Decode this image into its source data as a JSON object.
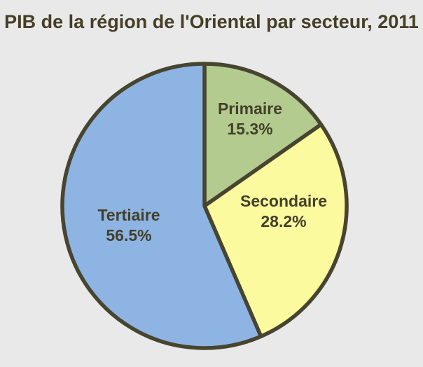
{
  "title": "PIB de la région de l'Oriental par secteur, 2011",
  "chart_data": {
    "type": "pie",
    "title": "PIB de la région de l'Oriental par secteur, 2011",
    "categories": [
      "Primaire",
      "Secondaire",
      "Tertiaire"
    ],
    "values": [
      15.3,
      28.2,
      56.5
    ],
    "unit": "%",
    "start_angle": "12 o'clock",
    "direction": "clockwise",
    "legend": "none",
    "slice_colors": [
      "#b4cb90",
      "#fbfa9e",
      "#8eb4e3"
    ],
    "outline_color": "#474430",
    "background_color": "#e9e9e9",
    "title_color": "#453f26",
    "label_color": "#43402a",
    "labels": [
      {
        "name": "Primaire",
        "value_text": "15.3%"
      },
      {
        "name": "Secondaire",
        "value_text": "28.2%"
      },
      {
        "name": "Tertiaire",
        "value_text": "56.5%"
      }
    ]
  }
}
